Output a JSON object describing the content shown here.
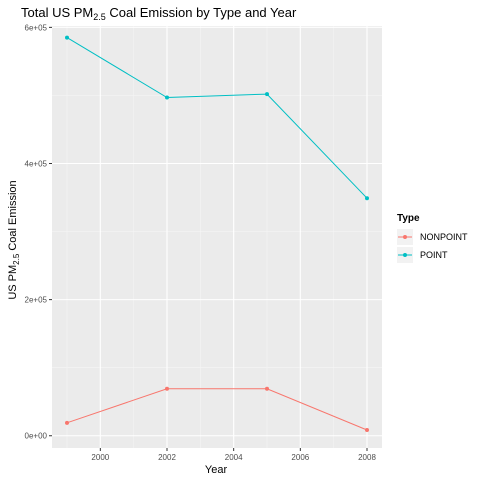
{
  "chart_data": {
    "type": "line",
    "title": {
      "main": "Total US PM",
      "sub": "2.5",
      "rest": " Coal Emission by Type and Year"
    },
    "xlabel": "Year",
    "ylabel": {
      "main": "US PM",
      "sub": "2.5",
      "rest": " Coal Emission"
    },
    "x": [
      1999,
      2002,
      2005,
      2008
    ],
    "series": [
      {
        "name": "NONPOINT",
        "color": "#F8766D",
        "values": [
          19000,
          69000,
          69000,
          8500
        ]
      },
      {
        "name": "POINT",
        "color": "#00BFC4",
        "values": [
          585000,
          497000,
          502000,
          349000
        ]
      }
    ],
    "xlim": [
      1998.55,
      2008.45
    ],
    "ylim": [
      -18000,
      602000
    ],
    "x_ticks": [
      2000,
      2002,
      2004,
      2006,
      2008
    ],
    "x_tick_labels": [
      "2000",
      "2002",
      "2004",
      "2006",
      "2008"
    ],
    "y_ticks": [
      0,
      200000,
      400000,
      600000
    ],
    "y_tick_labels": [
      "0e+00",
      "2e+05",
      "4e+05",
      "6e+05"
    ],
    "grid": true,
    "legend": {
      "title": "Type",
      "placement": "right"
    }
  }
}
